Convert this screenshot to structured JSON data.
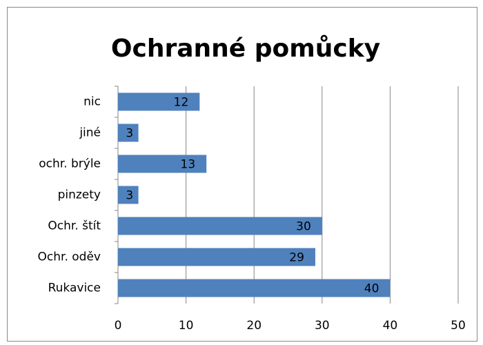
{
  "chart_data": {
    "type": "bar",
    "orientation": "horizontal",
    "title": "Ochranné pomůcky",
    "categories": [
      "nic",
      "jiné",
      "ochr. brýle",
      "pinzety",
      "Ochr. štít",
      "Ochr. oděv",
      "Rukavice"
    ],
    "values": [
      12,
      3,
      13,
      3,
      30,
      29,
      40
    ],
    "color": "#4f81bd",
    "xlim": [
      0,
      50
    ],
    "xticks": [
      0,
      10,
      20,
      30,
      40,
      50
    ],
    "grid": true
  }
}
